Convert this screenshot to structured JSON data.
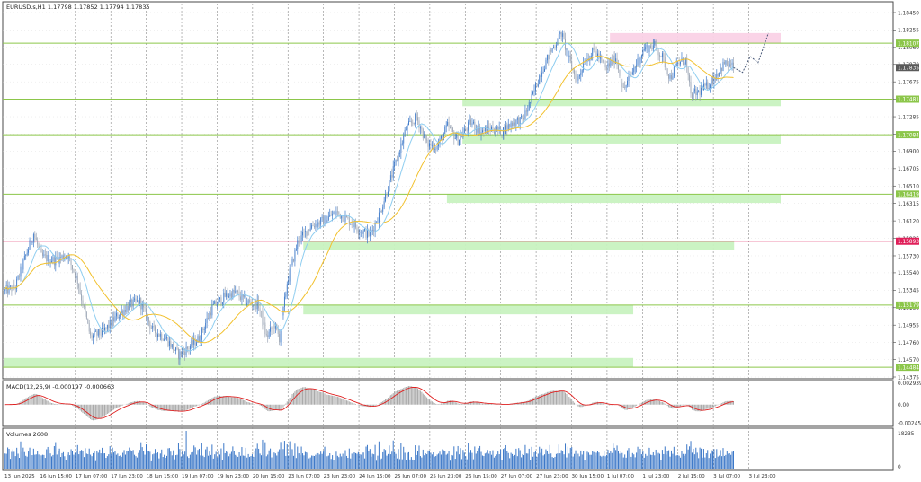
{
  "chart_data": {
    "type": "candlestick",
    "symbol_line": "EURUSD.s,H1  1.17798 1.17852 1.17794 1.17835",
    "colors": {
      "background": "#ffffff",
      "bull_candle": "#3c78c8",
      "bear_candle": "#9aa4b4",
      "ma_fast": "#8ecdf0",
      "ma_slow": "#f2c12e",
      "green_zone": "#c8f2c0",
      "green_line": "#8cc64a",
      "red_line": "#e0205a",
      "pink_zone": "#fad2e6",
      "macd_signal": "#e02020",
      "histogram": "#a8a8a8",
      "projection": "#4a5a7a",
      "grid": "#8a8a8a"
    },
    "price_axis": {
      "min": 1.14375,
      "max": 1.1855,
      "ticks": [
        "1.18450",
        "1.18255",
        "1.18060",
        "1.17870",
        "1.17675",
        "1.17480",
        "1.17285",
        "1.17090",
        "1.16900",
        "1.16705",
        "1.16510",
        "1.16315",
        "1.16120",
        "1.15925",
        "1.15730",
        "1.15540",
        "1.15345",
        "1.15150",
        "1.14955",
        "1.14760",
        "1.14570",
        "1.14375"
      ]
    },
    "levels": [
      {
        "price": 1.18107,
        "label": "1.18107",
        "color": "#8cc64a",
        "zone": [
          1.18107,
          1.1822
        ],
        "zone_color": "#fad2e6",
        "zone_x": [
          0.78,
          1.0
        ]
      },
      {
        "price": 1.17481,
        "label": "1.17481",
        "color": "#8cc64a",
        "zone": [
          1.17403,
          1.17481
        ],
        "zone_color": "#c8f2c0",
        "zone_x": [
          0.59,
          1.0
        ]
      },
      {
        "price": 1.17084,
        "label": "1.17084",
        "color": "#8cc64a",
        "zone": [
          1.16985,
          1.17084
        ],
        "zone_color": "#c8f2c0",
        "zone_x": [
          0.59,
          1.0
        ]
      },
      {
        "price": 1.16419,
        "label": "1.16419",
        "color": "#8cc64a",
        "zone": [
          1.16321,
          1.16419
        ],
        "zone_color": "#c8f2c0",
        "zone_x": [
          0.57,
          1.0
        ]
      },
      {
        "price": 1.15893,
        "label": "1.15893",
        "color": "#e0205a",
        "zone": [
          1.15795,
          1.15893
        ],
        "zone_color": "#c8f2c0",
        "zone_x": [
          0.385,
          0.94
        ]
      },
      {
        "price": 1.15179,
        "label": "1.15179",
        "color": "#8cc64a",
        "zone": [
          1.15076,
          1.15179
        ],
        "zone_color": "#c8f2c0",
        "zone_x": [
          0.385,
          0.81
        ]
      },
      {
        "price": 1.14484,
        "label": "1.14484",
        "color": "#8cc64a",
        "zone": [
          1.14484,
          1.14588
        ],
        "zone_color": "#c8f2c0",
        "zone_x": [
          0.0,
          0.81
        ]
      }
    ],
    "current_price": "1.17835",
    "time_labels": [
      "13 Jun 2025",
      "16 Jun 15:00",
      "17 Jun 07:00",
      "17 Jun 23:00",
      "18 Jun 15:00",
      "19 Jun 07:00",
      "19 Jun 23:00",
      "20 Jun 15:00",
      "23 Jun 07:00",
      "23 Jun 23:00",
      "24 Jun 15:00",
      "25 Jun 07:00",
      "25 Jun 23:00",
      "26 Jun 15:00",
      "27 Jun 07:00",
      "27 Jun 23:00",
      "30 Jun 15:00",
      "1 Jul 07:00",
      "1 Jul 23:00",
      "2 Jul 15:00",
      "3 Jul 07:00",
      "3 Jul 23:00"
    ],
    "price_anchors": [
      [
        0,
        1.1534
      ],
      [
        8,
        1.1538
      ],
      [
        14,
        1.1565
      ],
      [
        22,
        1.1598
      ],
      [
        28,
        1.1572
      ],
      [
        38,
        1.1568
      ],
      [
        48,
        1.1574
      ],
      [
        56,
        1.1545
      ],
      [
        66,
        1.1482
      ],
      [
        76,
        1.1488
      ],
      [
        86,
        1.1505
      ],
      [
        96,
        1.1518
      ],
      [
        104,
        1.1522
      ],
      [
        114,
        1.149
      ],
      [
        124,
        1.1481
      ],
      [
        134,
        1.1462
      ],
      [
        140,
        1.1468
      ],
      [
        150,
        1.1481
      ],
      [
        160,
        1.1515
      ],
      [
        170,
        1.1528
      ],
      [
        178,
        1.1532
      ],
      [
        186,
        1.1522
      ],
      [
        196,
        1.1518
      ],
      [
        202,
        1.1482
      ],
      [
        208,
        1.1496
      ],
      [
        212,
        1.1481
      ],
      [
        218,
        1.1543
      ],
      [
        226,
        1.1588
      ],
      [
        236,
        1.1606
      ],
      [
        246,
        1.1612
      ],
      [
        256,
        1.1622
      ],
      [
        266,
        1.1612
      ],
      [
        274,
        1.1602
      ],
      [
        282,
        1.1596
      ],
      [
        290,
        1.1622
      ],
      [
        300,
        1.1668
      ],
      [
        310,
        1.1715
      ],
      [
        318,
        1.1728
      ],
      [
        326,
        1.1698
      ],
      [
        334,
        1.1695
      ],
      [
        342,
        1.1718
      ],
      [
        350,
        1.1702
      ],
      [
        360,
        1.1722
      ],
      [
        368,
        1.1712
      ],
      [
        376,
        1.1715
      ],
      [
        384,
        1.1712
      ],
      [
        392,
        1.1722
      ],
      [
        400,
        1.1725
      ],
      [
        406,
        1.1745
      ],
      [
        414,
        1.1778
      ],
      [
        422,
        1.1802
      ],
      [
        430,
        1.1822
      ],
      [
        436,
        1.1792
      ],
      [
        442,
        1.1768
      ],
      [
        448,
        1.1792
      ],
      [
        456,
        1.1802
      ],
      [
        464,
        1.1782
      ],
      [
        472,
        1.1795
      ],
      [
        478,
        1.1758
      ],
      [
        486,
        1.1782
      ],
      [
        494,
        1.1805
      ],
      [
        502,
        1.1808
      ],
      [
        508,
        1.1795
      ],
      [
        514,
        1.1772
      ],
      [
        520,
        1.1788
      ],
      [
        526,
        1.1792
      ],
      [
        530,
        1.1752
      ],
      [
        536,
        1.1756
      ],
      [
        542,
        1.1762
      ],
      [
        548,
        1.1772
      ],
      [
        556,
        1.1788
      ],
      [
        563,
        1.17835
      ]
    ],
    "projection": [
      [
        563,
        1.17835
      ],
      [
        570,
        1.1778
      ],
      [
        576,
        1.1796
      ],
      [
        582,
        1.1789
      ],
      [
        590,
        1.1822
      ]
    ],
    "total_bars": 600,
    "ma_fast_period": 14,
    "ma_slow_period": 40,
    "macd": {
      "label": "MACD(12,26,9) -0.000197 -0.000663",
      "axis_ticks": [
        "0.002939",
        "0.00",
        "-0.002458"
      ],
      "min": -0.0027,
      "max": 0.003,
      "zero": "0.00"
    },
    "volumes": {
      "label": "Volumes 2608",
      "axis_ticks": [
        "18235",
        "0"
      ],
      "max": 18235
    }
  }
}
